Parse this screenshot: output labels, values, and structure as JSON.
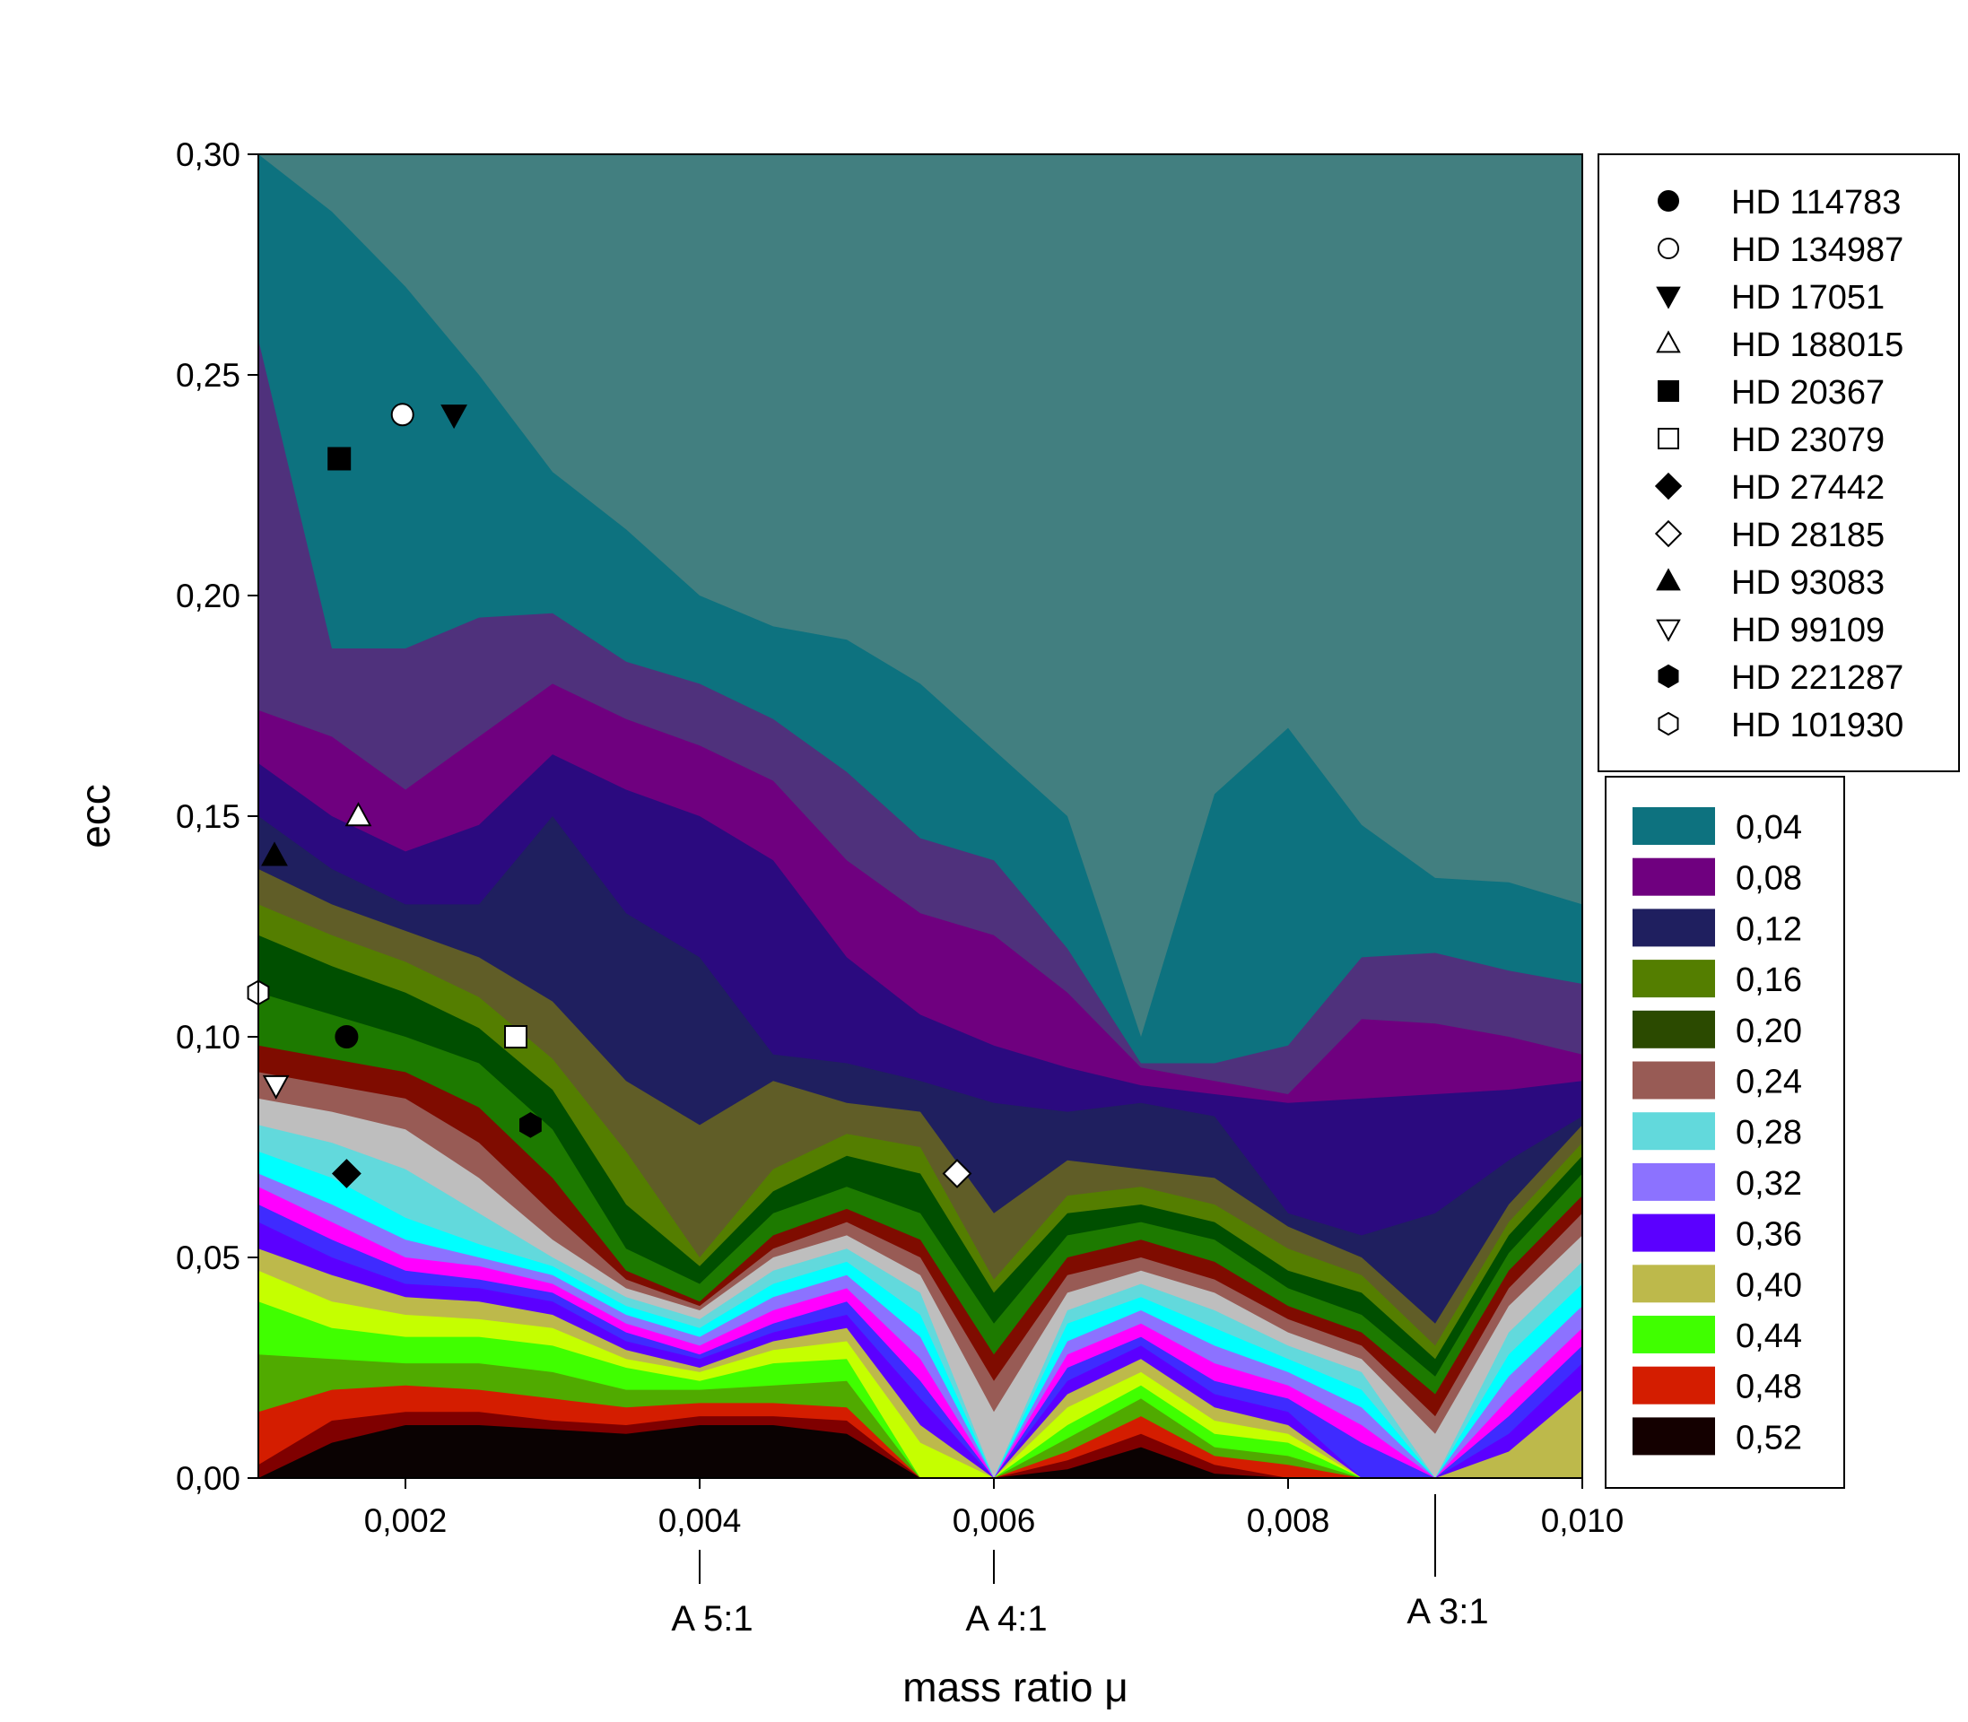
{
  "chart_data": {
    "type": "heatmap",
    "title": "",
    "xlabel": "mass ratio μ",
    "ylabel": "ecc",
    "xlim": [
      0.001,
      0.01
    ],
    "ylim": [
      0.0,
      0.3
    ],
    "xticks": [
      {
        "value": 0.002,
        "label": "0,002"
      },
      {
        "value": 0.004,
        "label": "0,004"
      },
      {
        "value": 0.006,
        "label": "0,006"
      },
      {
        "value": 0.008,
        "label": "0,008"
      },
      {
        "value": 0.01,
        "label": "0,010"
      }
    ],
    "yticks": [
      {
        "value": 0.0,
        "label": "0,00"
      },
      {
        "value": 0.05,
        "label": "0,05"
      },
      {
        "value": 0.1,
        "label": "0,10"
      },
      {
        "value": 0.15,
        "label": "0,15"
      },
      {
        "value": 0.2,
        "label": "0,20"
      },
      {
        "value": 0.25,
        "label": "0,25"
      },
      {
        "value": 0.3,
        "label": "0,30"
      }
    ],
    "annotations": [
      {
        "x": 0.004,
        "label": "A 5:1"
      },
      {
        "x": 0.006,
        "label": "A 4:1"
      },
      {
        "x": 0.009,
        "label": "A 3:1"
      }
    ],
    "contour_x": [
      0.001,
      0.0015,
      0.002,
      0.0025,
      0.003,
      0.0035,
      0.004,
      0.0045,
      0.005,
      0.0055,
      0.006,
      0.0065,
      0.007,
      0.0075,
      0.008,
      0.0085,
      0.009,
      0.0095,
      0.01
    ],
    "top_color": "#427f80",
    "bands": [
      {
        "color": "#0d727f",
        "boundary": [
          0.3,
          0.287,
          0.27,
          0.25,
          0.228,
          0.215,
          0.2,
          0.193,
          0.19,
          0.18,
          0.165,
          0.15,
          0.1,
          0.155,
          0.17,
          0.148,
          0.136,
          0.135,
          0.13
        ]
      },
      {
        "color": "#4f317c",
        "boundary": [
          0.258,
          0.188,
          0.188,
          0.195,
          0.196,
          0.185,
          0.18,
          0.172,
          0.16,
          0.145,
          0.14,
          0.12,
          0.094,
          0.094,
          0.098,
          0.118,
          0.119,
          0.115,
          0.112
        ]
      },
      {
        "color": "#6f007f",
        "boundary": [
          0.174,
          0.168,
          0.156,
          0.168,
          0.18,
          0.172,
          0.166,
          0.158,
          0.14,
          0.128,
          0.123,
          0.11,
          0.093,
          0.09,
          0.087,
          0.104,
          0.103,
          0.1,
          0.096
        ]
      },
      {
        "color": "#2b0a7f",
        "boundary": [
          0.162,
          0.15,
          0.142,
          0.148,
          0.164,
          0.156,
          0.15,
          0.14,
          0.118,
          0.105,
          0.098,
          0.093,
          0.089,
          0.087,
          0.085,
          0.086,
          0.087,
          0.088,
          0.09
        ]
      },
      {
        "color": "#1f1f5f",
        "boundary": [
          0.15,
          0.138,
          0.13,
          0.13,
          0.15,
          0.128,
          0.118,
          0.096,
          0.094,
          0.09,
          0.085,
          0.083,
          0.085,
          0.082,
          0.06,
          0.055,
          0.06,
          0.072,
          0.082
        ]
      },
      {
        "color": "#605d27",
        "boundary": [
          0.138,
          0.13,
          0.124,
          0.118,
          0.108,
          0.09,
          0.08,
          0.09,
          0.085,
          0.083,
          0.06,
          0.072,
          0.07,
          0.068,
          0.057,
          0.05,
          0.035,
          0.062,
          0.08
        ]
      },
      {
        "color": "#547e00",
        "boundary": [
          0.13,
          0.123,
          0.117,
          0.109,
          0.095,
          0.074,
          0.05,
          0.07,
          0.078,
          0.075,
          0.045,
          0.064,
          0.066,
          0.062,
          0.052,
          0.046,
          0.03,
          0.058,
          0.076
        ]
      },
      {
        "color": "#004f00",
        "boundary": [
          0.123,
          0.116,
          0.11,
          0.102,
          0.088,
          0.062,
          0.048,
          0.065,
          0.073,
          0.069,
          0.042,
          0.06,
          0.062,
          0.058,
          0.047,
          0.042,
          0.027,
          0.055,
          0.073
        ]
      },
      {
        "color": "#1d7a00",
        "boundary": [
          0.11,
          0.105,
          0.1,
          0.094,
          0.079,
          0.052,
          0.044,
          0.06,
          0.066,
          0.06,
          0.035,
          0.055,
          0.058,
          0.054,
          0.043,
          0.037,
          0.023,
          0.051,
          0.069
        ]
      },
      {
        "color": "#7f0c00",
        "boundary": [
          0.098,
          0.095,
          0.092,
          0.084,
          0.068,
          0.047,
          0.04,
          0.055,
          0.061,
          0.054,
          0.028,
          0.05,
          0.054,
          0.049,
          0.039,
          0.033,
          0.019,
          0.047,
          0.064
        ]
      },
      {
        "color": "#985b55",
        "boundary": [
          0.092,
          0.089,
          0.086,
          0.076,
          0.06,
          0.045,
          0.039,
          0.052,
          0.058,
          0.05,
          0.022,
          0.046,
          0.05,
          0.045,
          0.036,
          0.03,
          0.014,
          0.043,
          0.06
        ]
      },
      {
        "color": "#bebebe",
        "boundary": [
          0.086,
          0.083,
          0.079,
          0.068,
          0.054,
          0.043,
          0.038,
          0.05,
          0.055,
          0.046,
          0.015,
          0.042,
          0.047,
          0.042,
          0.033,
          0.027,
          0.01,
          0.039,
          0.055
        ]
      },
      {
        "color": "#62d9dc",
        "boundary": [
          0.08,
          0.076,
          0.07,
          0.06,
          0.05,
          0.041,
          0.036,
          0.047,
          0.052,
          0.042,
          0.0,
          0.038,
          0.044,
          0.038,
          0.03,
          0.024,
          0.0,
          0.033,
          0.049
        ]
      },
      {
        "color": "#00ffff",
        "boundary": [
          0.074,
          0.068,
          0.059,
          0.053,
          0.048,
          0.039,
          0.034,
          0.044,
          0.049,
          0.037,
          0.0,
          0.035,
          0.041,
          0.034,
          0.027,
          0.02,
          0.0,
          0.028,
          0.044
        ]
      },
      {
        "color": "#8c72ff",
        "boundary": [
          0.069,
          0.062,
          0.054,
          0.05,
          0.046,
          0.037,
          0.032,
          0.041,
          0.046,
          0.032,
          0.0,
          0.031,
          0.038,
          0.03,
          0.024,
          0.016,
          0.0,
          0.023,
          0.039
        ]
      },
      {
        "color": "#ff00ff",
        "boundary": [
          0.066,
          0.058,
          0.05,
          0.048,
          0.044,
          0.035,
          0.03,
          0.038,
          0.043,
          0.027,
          0.0,
          0.028,
          0.035,
          0.026,
          0.021,
          0.012,
          0.0,
          0.018,
          0.034
        ]
      },
      {
        "color": "#3f2bff",
        "boundary": [
          0.062,
          0.054,
          0.047,
          0.045,
          0.042,
          0.033,
          0.028,
          0.035,
          0.04,
          0.022,
          0.0,
          0.025,
          0.032,
          0.022,
          0.018,
          0.008,
          0.0,
          0.014,
          0.03
        ]
      },
      {
        "color": "#5b00ff",
        "boundary": [
          0.058,
          0.05,
          0.044,
          0.043,
          0.04,
          0.031,
          0.027,
          0.033,
          0.037,
          0.018,
          0.0,
          0.022,
          0.03,
          0.019,
          0.015,
          0.0,
          0.0,
          0.01,
          0.026
        ]
      },
      {
        "color": "#bdb94b",
        "boundary": [
          0.052,
          0.046,
          0.041,
          0.04,
          0.037,
          0.029,
          0.025,
          0.031,
          0.034,
          0.012,
          0.0,
          0.019,
          0.027,
          0.016,
          0.012,
          0.0,
          0.0,
          0.006,
          0.02
        ]
      },
      {
        "color": "#c5ff00",
        "boundary": [
          0.047,
          0.04,
          0.037,
          0.036,
          0.034,
          0.027,
          0.024,
          0.029,
          0.031,
          0.008,
          0.0,
          0.016,
          0.024,
          0.013,
          0.01,
          0.0,
          0.0,
          0.0,
          0.0
        ]
      },
      {
        "color": "#40ff00",
        "boundary": [
          0.04,
          0.034,
          0.032,
          0.032,
          0.03,
          0.025,
          0.022,
          0.026,
          0.027,
          0.0,
          0.0,
          0.012,
          0.021,
          0.01,
          0.008,
          0.0,
          0.0,
          0.0,
          0.0
        ]
      },
      {
        "color": "#50aa00",
        "boundary": [
          0.028,
          0.027,
          0.026,
          0.026,
          0.024,
          0.02,
          0.02,
          0.021,
          0.022,
          0.0,
          0.0,
          0.009,
          0.018,
          0.007,
          0.005,
          0.0,
          0.0,
          0.0,
          0.0
        ]
      },
      {
        "color": "#d41d00",
        "boundary": [
          0.015,
          0.02,
          0.021,
          0.02,
          0.018,
          0.016,
          0.017,
          0.017,
          0.016,
          0.0,
          0.0,
          0.006,
          0.014,
          0.005,
          0.003,
          0.0,
          0.0,
          0.0,
          0.0
        ]
      },
      {
        "color": "#7f0000",
        "boundary": [
          0.003,
          0.013,
          0.015,
          0.015,
          0.013,
          0.012,
          0.014,
          0.014,
          0.013,
          0.0,
          0.0,
          0.004,
          0.01,
          0.003,
          0.0,
          0.0,
          0.0,
          0.0,
          0.0
        ]
      },
      {
        "color": "#0a0202",
        "boundary": [
          0.0,
          0.008,
          0.012,
          0.012,
          0.011,
          0.01,
          0.012,
          0.012,
          0.01,
          0.0,
          0.0,
          0.002,
          0.007,
          0.001,
          0.0,
          0.0,
          0.0,
          0.0,
          0.0
        ]
      }
    ],
    "colorbar": [
      {
        "label": "0,04",
        "color": "#0d727f"
      },
      {
        "label": "0,08",
        "color": "#6f007f"
      },
      {
        "label": "0,12",
        "color": "#1f1f5f"
      },
      {
        "label": "0,16",
        "color": "#547e00"
      },
      {
        "label": "0,20",
        "color": "#2b4a00"
      },
      {
        "label": "0,24",
        "color": "#985b55"
      },
      {
        "label": "0,28",
        "color": "#62d9dc"
      },
      {
        "label": "0,32",
        "color": "#8c72ff"
      },
      {
        "label": "0,36",
        "color": "#5b00ff"
      },
      {
        "label": "0,40",
        "color": "#bdb94b"
      },
      {
        "label": "0,44",
        "color": "#40ff00"
      },
      {
        "label": "0,48",
        "color": "#d41d00"
      },
      {
        "label": "0,52",
        "color": "#140000"
      }
    ],
    "planets": [
      {
        "name": "HD 114783",
        "marker": "circle",
        "fill": "black",
        "x": 0.0016,
        "y": 0.1
      },
      {
        "name": "HD 134987",
        "marker": "circle",
        "fill": "white",
        "x": 0.00198,
        "y": 0.241
      },
      {
        "name": "HD 17051",
        "marker": "triangle-down",
        "fill": "black",
        "x": 0.00233,
        "y": 0.241
      },
      {
        "name": "HD 188015",
        "marker": "triangle-up",
        "fill": "white",
        "x": 0.00168,
        "y": 0.15
      },
      {
        "name": "HD 20367",
        "marker": "square",
        "fill": "black",
        "x": 0.00155,
        "y": 0.231
      },
      {
        "name": "HD 23079",
        "marker": "square",
        "fill": "white",
        "x": 0.00275,
        "y": 0.1
      },
      {
        "name": "HD 27442",
        "marker": "diamond",
        "fill": "black",
        "x": 0.0016,
        "y": 0.069
      },
      {
        "name": "HD 28185",
        "marker": "diamond",
        "fill": "white",
        "x": 0.00575,
        "y": 0.069
      },
      {
        "name": "HD 93083",
        "marker": "triangle-up",
        "fill": "black",
        "x": 0.00111,
        "y": 0.141
      },
      {
        "name": "HD 99109",
        "marker": "triangle-down",
        "fill": "white",
        "x": 0.00112,
        "y": 0.089
      },
      {
        "name": "HD 221287",
        "marker": "hexagon",
        "fill": "black",
        "x": 0.00285,
        "y": 0.08
      },
      {
        "name": "HD 101930",
        "marker": "hexagon",
        "fill": "white",
        "x": 0.001,
        "y": 0.11
      }
    ]
  }
}
